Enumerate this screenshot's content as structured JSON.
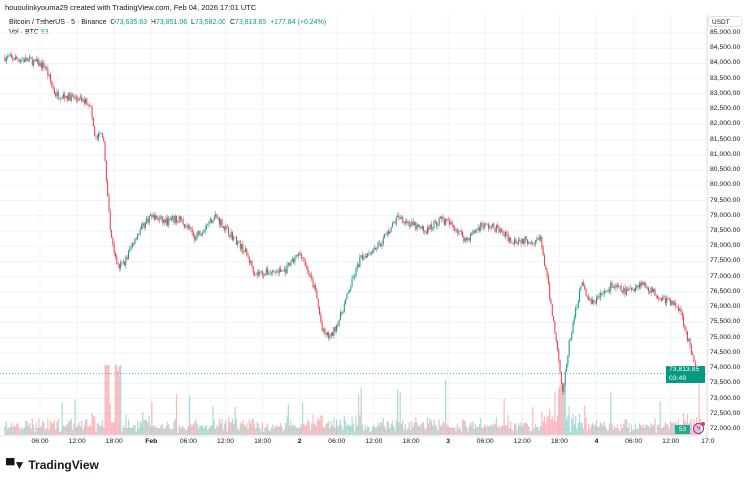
{
  "attribution": "hououlinkyouma29 created with TradingView.com, Feb 04, 2026 17:01 UTC",
  "legend": {
    "symbol": "Bitcoin / TetherUS · 5 · Binance",
    "open": "73,635.63",
    "high": "73,851.06",
    "low": "73,582.00",
    "close": "73,813.85",
    "change": "+177.84 (+0.24%)",
    "vol_label": "Vol · BTC",
    "vol_value": "53",
    "o_label": "O",
    "h_label": "H",
    "l_label": "L",
    "c_label": "C"
  },
  "price_axis": {
    "unit": "USDT",
    "ticks": [
      "85,000.00",
      "84,500.00",
      "84,000.00",
      "83,500.00",
      "83,000.00",
      "82,500.00",
      "82,000.00",
      "81,500.00",
      "81,000.00",
      "80,500.00",
      "80,000.00",
      "79,500.00",
      "79,000.00",
      "78,500.00",
      "78,000.00",
      "77,500.00",
      "77,000.00",
      "76,500.00",
      "76,000.00",
      "75,500.00",
      "75,000.00",
      "74,500.00",
      "74,000.00",
      "73,500.00",
      "73,000.00",
      "72,500.00",
      "72,000.00"
    ]
  },
  "last_price": {
    "value": "73,813.85",
    "countdown": "03:49",
    "volume": "53"
  },
  "time_axis": {
    "ticks": [
      "06:00",
      "12:00",
      "18:00",
      "Feb",
      "06:00",
      "12:00",
      "18:00",
      "2",
      "06:00",
      "12:00",
      "18:00",
      "3",
      "06:00",
      "12:00",
      "18:00",
      "4",
      "06:00",
      "12:00",
      "17:0"
    ]
  },
  "colors": {
    "up": "#089981",
    "down": "#f23645",
    "grid": "#f0f3fa"
  },
  "brand": "TradingView",
  "chart_data": {
    "type": "candlestick",
    "interval": "5m",
    "ylim": [
      71800,
      85300
    ],
    "approx_close_path": [
      [
        "2026-01-31 00:20",
        84200
      ],
      [
        "2026-01-31 04:25",
        84100
      ],
      [
        "2026-01-31 06:50",
        83900
      ],
      [
        "2026-01-31 08:25",
        83000
      ],
      [
        "2026-01-31 10:50",
        82900
      ],
      [
        "2026-01-31 14:05",
        82700
      ],
      [
        "2026-01-31 14:55",
        81500
      ],
      [
        "2026-01-31 16:10",
        81700
      ],
      [
        "2026-01-31 16:50",
        80000
      ],
      [
        "2026-01-31 17:20",
        78500
      ],
      [
        "2026-01-31 18:40",
        77300
      ],
      [
        "2026-01-31 19:45",
        77500
      ],
      [
        "2026-01-31 21:25",
        78300
      ],
      [
        "2026-01-31 23:50",
        79000
      ],
      [
        "2026-02-01 02:15",
        78800
      ],
      [
        "2026-02-01 04:40",
        78900
      ],
      [
        "2026-02-01 07:05",
        78300
      ],
      [
        "2026-02-01 10:20",
        79000
      ],
      [
        "2026-02-01 12:50",
        78400
      ],
      [
        "2026-02-01 15:15",
        77800
      ],
      [
        "2026-02-01 16:50",
        77100
      ],
      [
        "2026-02-01 21:40",
        77200
      ],
      [
        "2026-02-02 00:10",
        77800
      ],
      [
        "2026-02-02 02:35",
        76500
      ],
      [
        "2026-02-02 03:40",
        75200
      ],
      [
        "2026-02-02 05:00",
        75000
      ],
      [
        "2026-02-02 06:35",
        75700
      ],
      [
        "2026-02-02 08:15",
        76700
      ],
      [
        "2026-02-02 09:50",
        77600
      ],
      [
        "2026-02-02 13:05",
        78100
      ],
      [
        "2026-02-02 16:00",
        79000
      ],
      [
        "2026-02-02 18:00",
        78700
      ],
      [
        "2026-02-02 20:25",
        78500
      ],
      [
        "2026-02-02 22:50",
        78900
      ],
      [
        "2026-02-03 01:15",
        78600
      ],
      [
        "2026-02-03 02:55",
        78200
      ],
      [
        "2026-02-03 05:20",
        78700
      ],
      [
        "2026-02-03 07:45",
        78600
      ],
      [
        "2026-02-03 10:10",
        78200
      ],
      [
        "2026-02-03 15:00",
        78200
      ],
      [
        "2026-02-03 16:20",
        76500
      ],
      [
        "2026-02-03 17:25",
        75000
      ],
      [
        "2026-02-03 18:35",
        73200
      ],
      [
        "2026-02-03 19:35",
        74800
      ],
      [
        "2026-02-03 20:45",
        76000
      ],
      [
        "2026-02-03 21:30",
        76800
      ],
      [
        "2026-02-03 23:10",
        76100
      ],
      [
        "2026-02-04 02:25",
        76700
      ],
      [
        "2026-02-04 04:50",
        76500
      ],
      [
        "2026-02-04 07:15",
        76800
      ],
      [
        "2026-02-04 10:30",
        76300
      ],
      [
        "2026-02-04 13:25",
        76000
      ],
      [
        "2026-02-04 14:30",
        75200
      ],
      [
        "2026-02-04 15:20",
        74500
      ],
      [
        "2026-02-04 16:10",
        73800
      ],
      [
        "2026-02-04 16:55",
        73600
      ],
      [
        "2026-02-04 17:00",
        73814
      ]
    ]
  }
}
